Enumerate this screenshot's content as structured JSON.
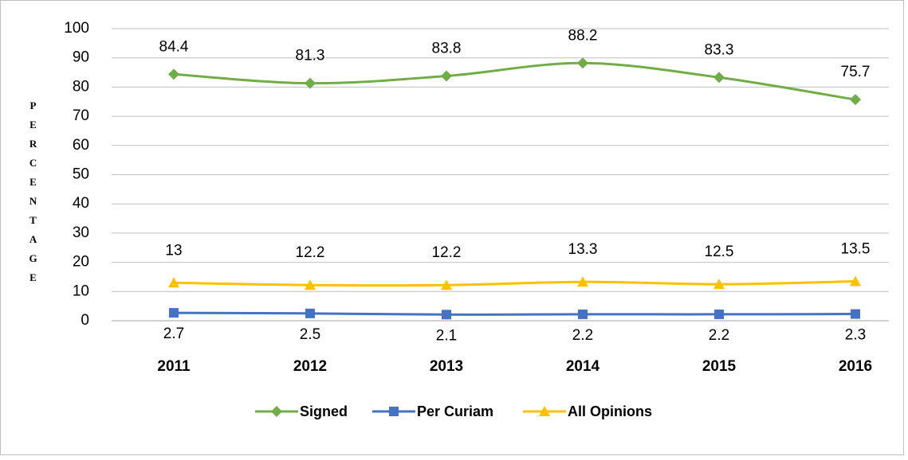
{
  "chart_data": {
    "type": "line",
    "y_label": "PERCENTAGE",
    "categories": [
      "2011",
      "2012",
      "2013",
      "2014",
      "2015",
      "2016"
    ],
    "series": [
      {
        "name": "Signed",
        "color": "#70ad47",
        "marker": "diamond",
        "label_position": "above",
        "values": [
          84.4,
          81.3,
          83.8,
          88.2,
          83.3,
          75.7
        ]
      },
      {
        "name": "Per Curiam",
        "color": "#4472c4",
        "marker": "square",
        "label_position": "below",
        "values": [
          2.7,
          2.5,
          2.1,
          2.2,
          2.2,
          2.3
        ]
      },
      {
        "name": "All Opinions",
        "color": "#ffc000",
        "marker": "triangle",
        "label_position": "above",
        "values": [
          13,
          12.2,
          12.2,
          13.3,
          12.5,
          13.5
        ]
      }
    ],
    "ylim": [
      0,
      100
    ],
    "yticks": [
      0,
      10,
      20,
      30,
      40,
      50,
      60,
      70,
      80,
      90,
      100
    ],
    "grid": true,
    "legend": "bottom",
    "smooth": true
  }
}
